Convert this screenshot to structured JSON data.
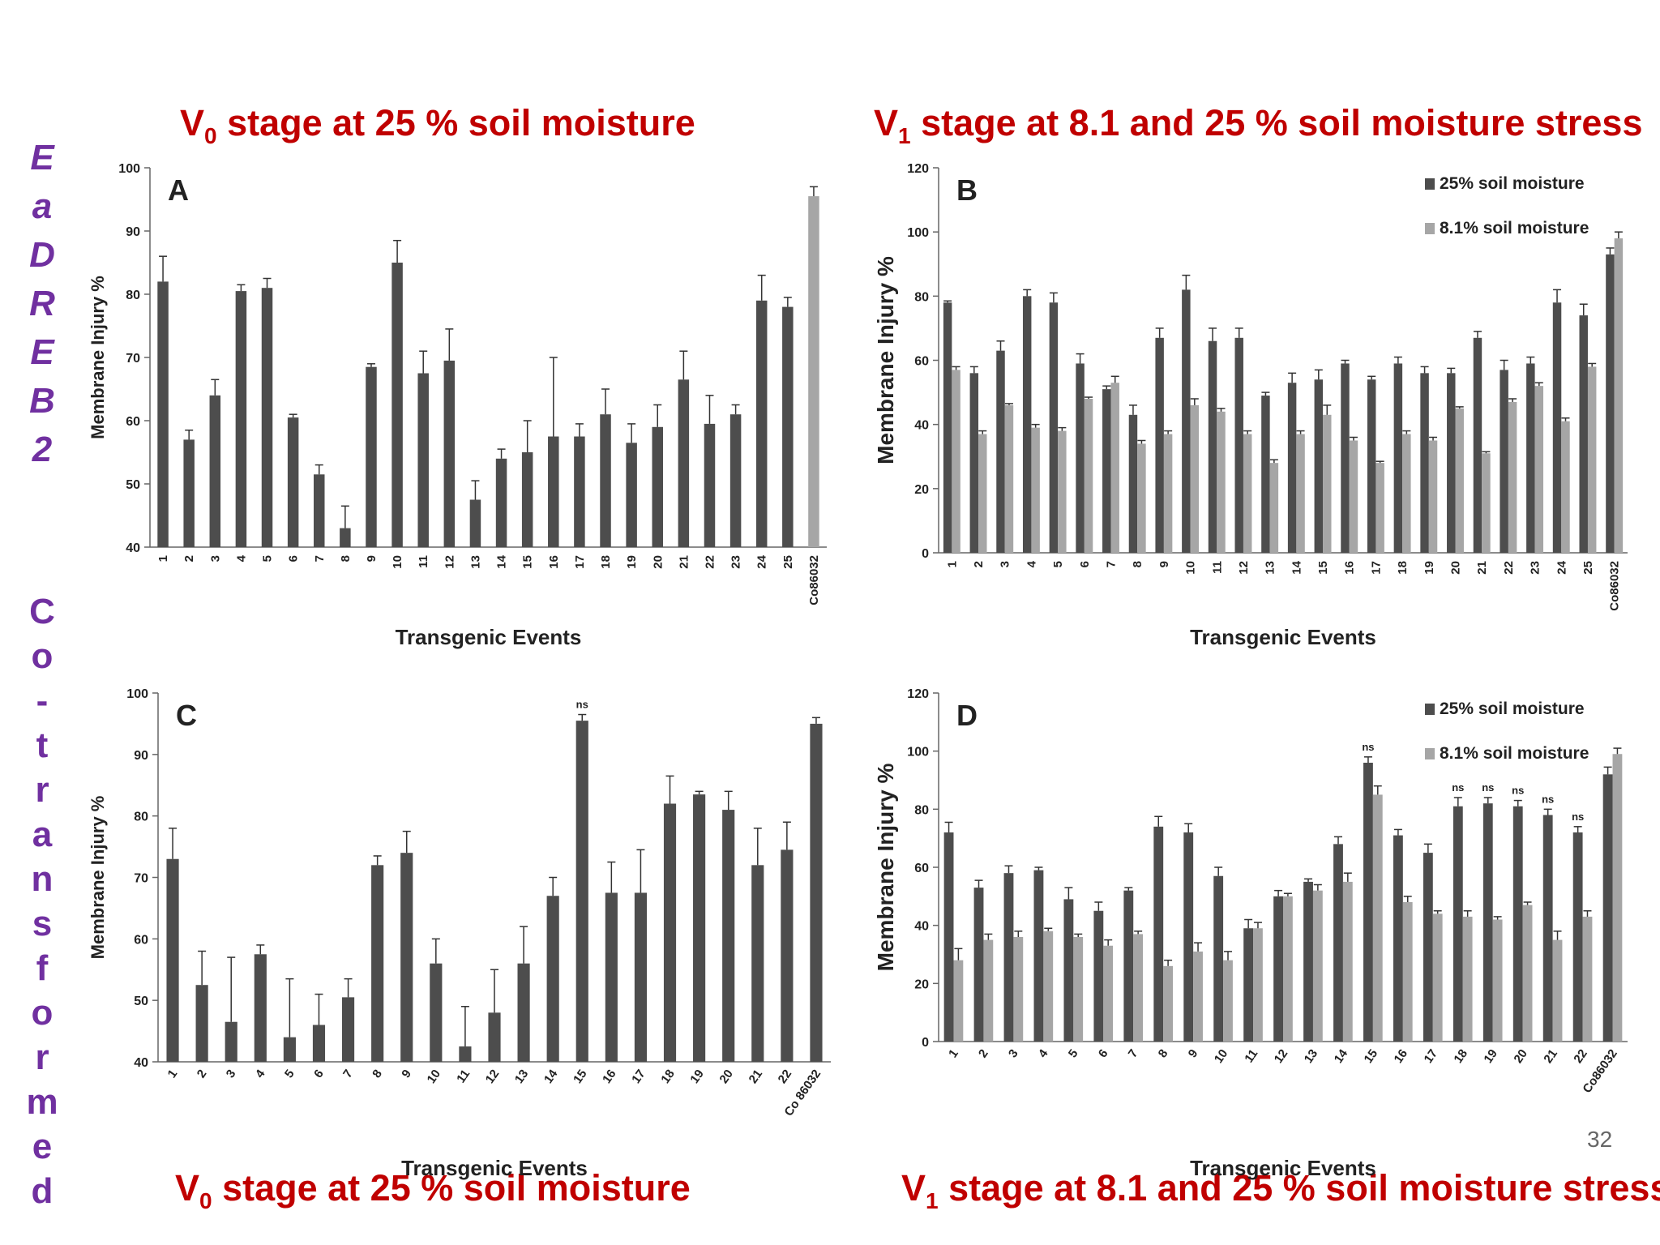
{
  "side_label_top": [
    "E",
    "a",
    "D",
    "R",
    "E",
    "B",
    "2"
  ],
  "side_label_bottom": [
    "C",
    "o",
    "-",
    "t",
    "r",
    "a",
    "n",
    "s",
    "f",
    "o",
    "r",
    "m",
    "e",
    "d"
  ],
  "headings": {
    "top_left": {
      "main": "V",
      "sub": "0",
      "rest": " stage at 25 % soil moisture"
    },
    "top_right": {
      "main": "V",
      "sub": "1",
      "rest": " stage at 8.1 and 25 % soil moisture stress"
    },
    "bottom_left": {
      "main": "V",
      "sub": "0",
      "rest": " stage at 25 % soil moisture"
    },
    "bottom_right": {
      "main": "V",
      "sub": "1",
      "rest": " stage at 8.1 and 25 % soil moisture stress"
    }
  },
  "page_number": "32",
  "colors": {
    "dark_bar": "#4d4d4d",
    "light_bar": "#a6a6a6",
    "heading": "#c00000",
    "side_label": "#7030a0"
  },
  "chart_data": [
    {
      "id": "A",
      "type": "bar",
      "panel_label": "A",
      "ylabel": "Membrane Injury %",
      "xlabel": "Transgenic Events",
      "ylim": [
        40,
        100
      ],
      "yticks": [
        40,
        50,
        60,
        70,
        80,
        90,
        100
      ],
      "categories": [
        "1",
        "2",
        "3",
        "4",
        "5",
        "6",
        "7",
        "8",
        "9",
        "10",
        "11",
        "12",
        "13",
        "14",
        "15",
        "16",
        "17",
        "18",
        "19",
        "20",
        "21",
        "22",
        "23",
        "24",
        "25",
        "Co86032"
      ],
      "series": [
        {
          "values": [
            82,
            57,
            64,
            80.5,
            81,
            60.5,
            51.5,
            43,
            68.5,
            85,
            67.5,
            69.5,
            47.5,
            54,
            55,
            57.5,
            57.5,
            61,
            56.5,
            59,
            66.5,
            59.5,
            61,
            79,
            78,
            95.5
          ],
          "errors": [
            4,
            1.5,
            2.5,
            1,
            1.5,
            0.5,
            1.5,
            3.5,
            0.5,
            3.5,
            3.5,
            5,
            3,
            1.5,
            5,
            12.5,
            2,
            4,
            3,
            3.5,
            4.5,
            4.5,
            1.5,
            4,
            1.5,
            1.5
          ]
        }
      ],
      "last_bar_light": true
    },
    {
      "id": "B",
      "type": "bar",
      "panel_label": "B",
      "ylabel": "Membrane Injury %",
      "xlabel": "Transgenic Events",
      "ylim": [
        0,
        120
      ],
      "yticks": [
        0,
        20,
        40,
        60,
        80,
        100,
        120
      ],
      "categories": [
        "1",
        "2",
        "3",
        "4",
        "5",
        "6",
        "7",
        "8",
        "9",
        "10",
        "11",
        "12",
        "13",
        "14",
        "15",
        "16",
        "17",
        "18",
        "19",
        "20",
        "21",
        "22",
        "23",
        "24",
        "25",
        "Co86032"
      ],
      "legend_position": "top-right",
      "series": [
        {
          "name": "25% soil moisture",
          "values": [
            78,
            56,
            63,
            80,
            78,
            59,
            51,
            43,
            67,
            82,
            66,
            67,
            49,
            53,
            54,
            59,
            54,
            59,
            56,
            56,
            67,
            57,
            59,
            78,
            74,
            93
          ],
          "errors": [
            0.5,
            2,
            3,
            2,
            3,
            3,
            1,
            3,
            3,
            4.5,
            4,
            3,
            1,
            3,
            3,
            1,
            1,
            2,
            2,
            1.5,
            2,
            3,
            2,
            4,
            3.5,
            2
          ]
        },
        {
          "name": "8.1% soil moisture",
          "values": [
            57,
            37,
            46,
            39,
            38,
            48,
            53,
            34,
            37,
            46,
            44,
            37,
            28,
            37,
            43,
            35,
            28,
            37,
            35,
            45,
            31,
            47,
            52,
            41,
            58,
            98
          ],
          "errors": [
            1,
            1,
            0.5,
            1,
            1,
            0.5,
            2,
            1,
            1,
            2,
            1,
            1,
            1,
            1,
            3,
            1,
            0.5,
            1,
            1,
            0.5,
            0.5,
            1,
            1,
            1,
            1,
            2
          ]
        }
      ]
    },
    {
      "id": "C",
      "type": "bar",
      "panel_label": "C",
      "ylabel": "Membrane Injury %",
      "xlabel": "Transgenic Events",
      "ylim": [
        40,
        100
      ],
      "yticks": [
        40,
        50,
        60,
        70,
        80,
        90,
        100
      ],
      "categories": [
        "1",
        "2",
        "3",
        "4",
        "5",
        "6",
        "7",
        "8",
        "9",
        "10",
        "11",
        "12",
        "13",
        "14",
        "15",
        "16",
        "17",
        "18",
        "19",
        "20",
        "21",
        "22",
        "Co 86032"
      ],
      "annotations": [
        {
          "category": "15",
          "text": "ns"
        }
      ],
      "series": [
        {
          "values": [
            73,
            52.5,
            46.5,
            57.5,
            44,
            46,
            50.5,
            72,
            74,
            56,
            42.5,
            48,
            56,
            67,
            95.5,
            67.5,
            67.5,
            82,
            83.5,
            81,
            72,
            74.5,
            95
          ],
          "errors": [
            5,
            5.5,
            10.5,
            1.5,
            9.5,
            5,
            3,
            1.5,
            3.5,
            4,
            6.5,
            7,
            6,
            3,
            1,
            5,
            7,
            4.5,
            0.5,
            3,
            6,
            4.5,
            1
          ]
        }
      ],
      "last_bar_light": false
    },
    {
      "id": "D",
      "type": "bar",
      "panel_label": "D",
      "ylabel": "Membrane Injury %",
      "xlabel": "Transgenic Events",
      "ylim": [
        0,
        120
      ],
      "yticks": [
        0,
        20,
        40,
        60,
        80,
        100,
        120
      ],
      "categories": [
        "1",
        "2",
        "3",
        "4",
        "5",
        "6",
        "7",
        "8",
        "9",
        "10",
        "11",
        "12",
        "13",
        "14",
        "15",
        "16",
        "17",
        "18",
        "19",
        "20",
        "21",
        "22",
        "Co86032"
      ],
      "legend_position": "top-right",
      "annotations": [
        {
          "category": "15",
          "text": "ns"
        },
        {
          "category": "18",
          "text": "ns"
        },
        {
          "category": "19",
          "text": "ns"
        },
        {
          "category": "20",
          "text": "ns"
        },
        {
          "category": "21",
          "text": "ns"
        },
        {
          "category": "22",
          "text": "ns"
        }
      ],
      "series": [
        {
          "name": "25% soil moisture",
          "values": [
            72,
            53,
            58,
            59,
            49,
            45,
            52,
            74,
            72,
            57,
            39,
            50,
            55,
            68,
            96,
            71,
            65,
            81,
            82,
            81,
            78,
            72,
            92
          ],
          "errors": [
            3.5,
            2.5,
            2.5,
            1,
            4,
            3,
            1,
            3.5,
            3,
            3,
            3,
            2,
            1,
            2.5,
            2,
            2,
            3,
            3,
            2,
            2,
            2,
            2,
            2.5
          ]
        },
        {
          "name": "8.1% soil moisture",
          "values": [
            28,
            35,
            36,
            38,
            36,
            33,
            37,
            26,
            31,
            28,
            39,
            50,
            52,
            55,
            85,
            48,
            44,
            43,
            42,
            47,
            35,
            43,
            99
          ],
          "errors": [
            4,
            2,
            2,
            1,
            1,
            2,
            1,
            2,
            3,
            3,
            2,
            1,
            2,
            3,
            3,
            2,
            1,
            2,
            1,
            1,
            3,
            2,
            2
          ]
        }
      ]
    }
  ]
}
